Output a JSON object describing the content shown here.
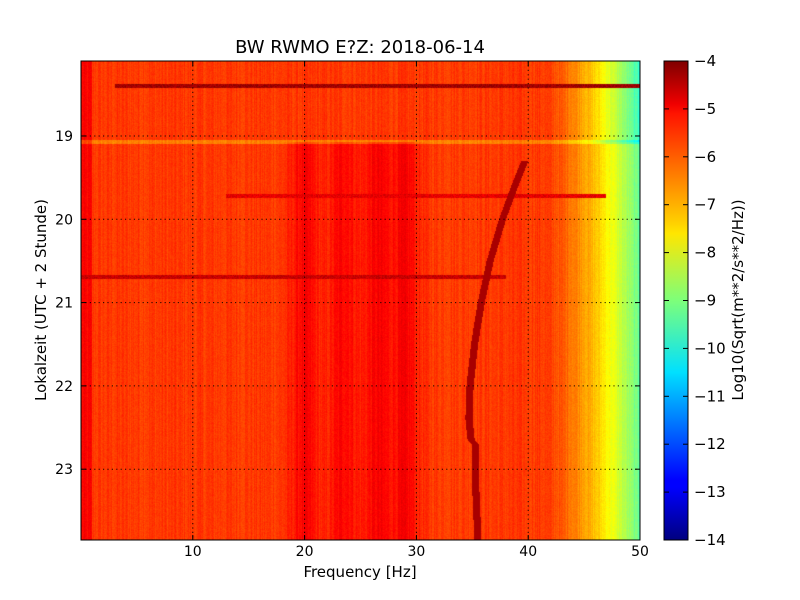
{
  "chart_data": {
    "type": "heatmap",
    "title": "BW RWMO E?Z: 2018-06-14",
    "xlabel": "Frequency [Hz]",
    "ylabel": "Lokalzeit (UTC + 2 Stunde)",
    "colorbar_label": "Log10(Sqrt(m**2/s**2/Hz))",
    "colormap": "jet",
    "xlim": [
      0,
      50
    ],
    "ylim": [
      18.1,
      23.85
    ],
    "y_inverted": true,
    "x_ticks": [
      10,
      20,
      30,
      40,
      50
    ],
    "y_ticks": [
      19,
      20,
      21,
      22,
      23
    ],
    "clim": [
      -14,
      -4
    ],
    "colorbar_ticks": [
      -4,
      -5,
      -6,
      -7,
      -8,
      -9,
      -10,
      -11,
      -12,
      -13,
      -14
    ],
    "grid": true,
    "features": {
      "background_level": -5.8,
      "dark_vertical_bands_hz": [
        20,
        23.5,
        26.5,
        29
      ],
      "rolloff_start_hz": 41,
      "rolloff_end_hz": 50,
      "rolloff_end_level": -10.5,
      "horizontal_lines": [
        {
          "time": 18.4,
          "x_from": 3,
          "x_to": 50,
          "level": -4.3
        },
        {
          "time": 19.72,
          "x_from": 13,
          "x_to": 47,
          "level": -5.0
        },
        {
          "time": 20.69,
          "x_from": 0,
          "x_to": 38,
          "level": -4.7
        }
      ],
      "gap_time": 19.07,
      "drifting_line": [
        {
          "time": 19.3,
          "freq": 39.7
        },
        {
          "time": 19.6,
          "freq": 38.8
        },
        {
          "time": 20.0,
          "freq": 37.7
        },
        {
          "time": 20.5,
          "freq": 36.6
        },
        {
          "time": 21.0,
          "freq": 35.8
        },
        {
          "time": 21.5,
          "freq": 35.2
        },
        {
          "time": 22.0,
          "freq": 34.8
        },
        {
          "time": 22.4,
          "freq": 34.7
        },
        {
          "time": 22.65,
          "freq": 34.9
        },
        {
          "time": 22.7,
          "freq": 35.3
        },
        {
          "time": 23.2,
          "freq": 35.3
        },
        {
          "time": 23.85,
          "freq": 35.5
        }
      ]
    }
  }
}
